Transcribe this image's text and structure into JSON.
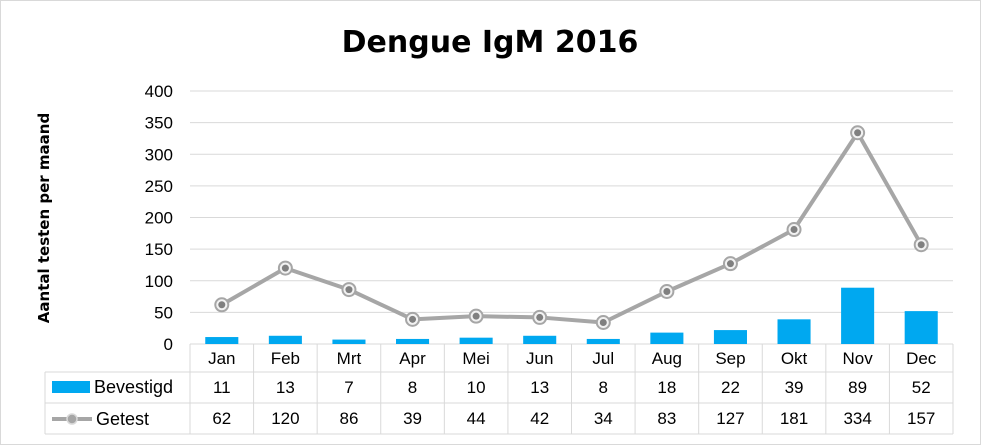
{
  "chart_data": {
    "type": "bar",
    "title": "Dengue IgM 2016",
    "ylabel": "Aantal testen per maand",
    "xlabel": "",
    "ylim": [
      0,
      400
    ],
    "yticks": [
      "0",
      "50",
      "100",
      "150",
      "200",
      "250",
      "300",
      "350",
      "400"
    ],
    "grid": true,
    "legend": "data-table-left",
    "categories": [
      "Jan",
      "Feb",
      "Mrt",
      "Apr",
      "Mei",
      "Jun",
      "Jul",
      "Aug",
      "Sep",
      "Okt",
      "Nov",
      "Dec"
    ],
    "series": [
      {
        "name": "Bevestigd",
        "type": "bar",
        "color": "#00a8f0",
        "values": [
          11,
          13,
          7,
          8,
          10,
          13,
          8,
          18,
          22,
          39,
          89,
          52
        ]
      },
      {
        "name": "Getest",
        "type": "line",
        "color": "#a6a6a6",
        "values": [
          62,
          120,
          86,
          39,
          44,
          42,
          34,
          83,
          127,
          181,
          334,
          157
        ]
      }
    ]
  }
}
